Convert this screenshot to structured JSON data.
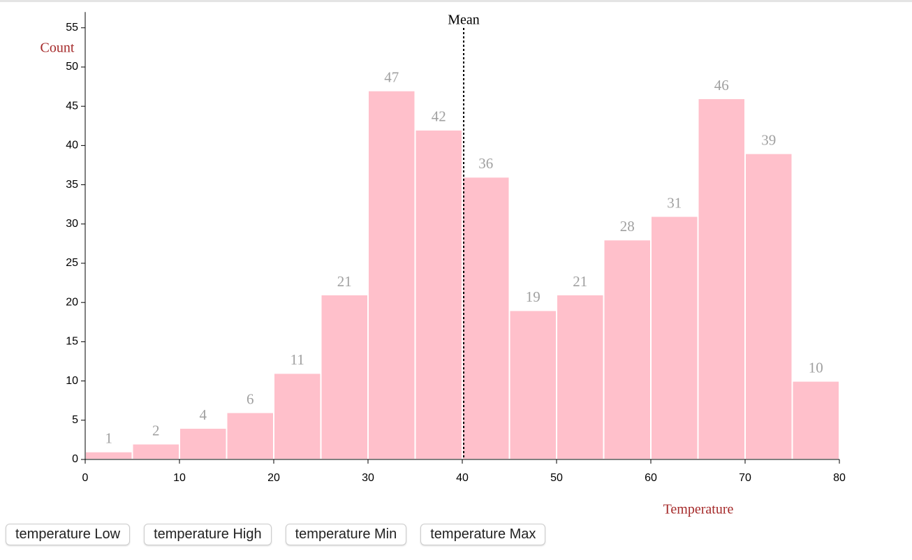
{
  "chart_data": {
    "type": "histogram",
    "bins": [
      0,
      5,
      10,
      15,
      20,
      25,
      30,
      35,
      40,
      45,
      50,
      55,
      60,
      65,
      70,
      75,
      80
    ],
    "counts": [
      1,
      2,
      4,
      6,
      11,
      21,
      47,
      42,
      36,
      19,
      21,
      28,
      31,
      46,
      39,
      10
    ],
    "color": "#ffc0cb",
    "xlim": [
      0,
      80
    ],
    "xticks": [
      0,
      10,
      20,
      30,
      40,
      50,
      60,
      70,
      80
    ],
    "ylim": [
      0,
      57
    ],
    "yticks": [
      0,
      5,
      10,
      15,
      20,
      25,
      30,
      35,
      40,
      45,
      50,
      55
    ],
    "x_label": "Temperature",
    "y_label": "Count",
    "mean": 40.15,
    "mean_label": "Mean"
  },
  "buttons": [
    "temperature Low",
    "temperature High",
    "temperature Min",
    "temperature Max"
  ]
}
